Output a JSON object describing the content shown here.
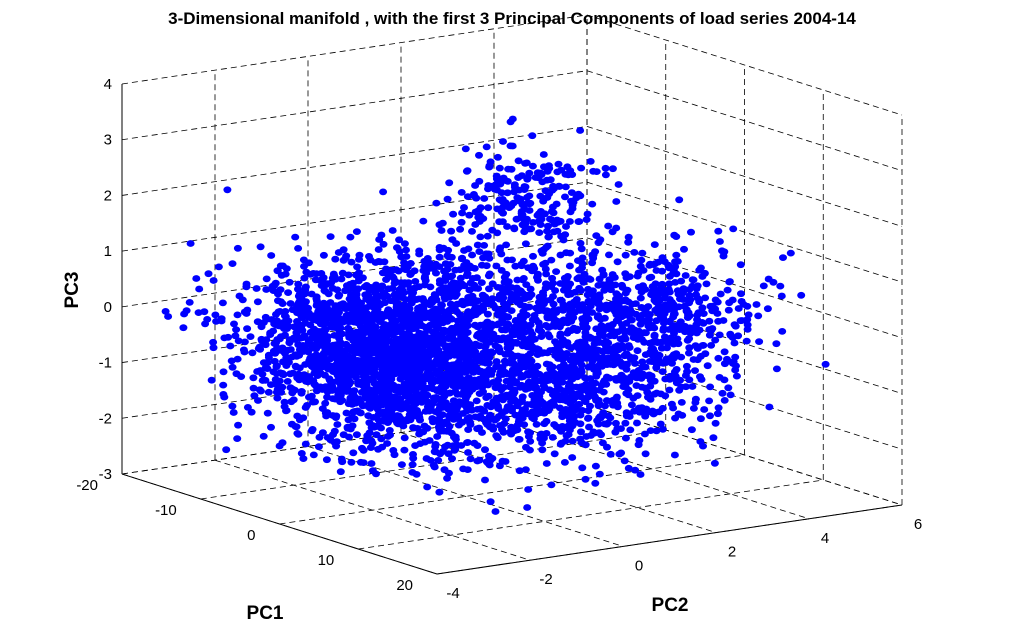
{
  "chart_data": {
    "type": "scatter",
    "title": "3-Dimensional manifold , with the first 3 Principal Components of load series 2004-14",
    "xlabel": "PC1",
    "ylabel": "PC2",
    "zlabel": "PC3",
    "xlim": [
      -20,
      20
    ],
    "ylim": [
      -4,
      6
    ],
    "zlim": [
      -3,
      4
    ],
    "x_ticks": [
      "-20",
      "-10",
      "0",
      "10",
      "20"
    ],
    "y_ticks": [
      "-4",
      "-2",
      "0",
      "2",
      "4",
      "6"
    ],
    "z_ticks": [
      "-3",
      "-2",
      "-1",
      "0",
      "1",
      "2",
      "3",
      "4"
    ],
    "grid": true,
    "point_color": "#0000ff",
    "clusters": [
      {
        "n": 2000,
        "center": [
          -2,
          -1.5,
          -0.4
        ],
        "spread": [
          7,
          0.9,
          0.7
        ]
      },
      {
        "n": 900,
        "center": [
          6,
          1.2,
          -0.9
        ],
        "spread": [
          5,
          1.4,
          0.55
        ]
      },
      {
        "n": 500,
        "center": [
          0,
          0.6,
          0.5
        ],
        "spread": [
          6,
          1.0,
          0.45
        ]
      },
      {
        "n": 220,
        "center": [
          -3,
          1.8,
          2.0
        ],
        "spread": [
          3,
          0.6,
          0.45
        ]
      },
      {
        "n": 420,
        "center": [
          3,
          3.5,
          0.1
        ],
        "spread": [
          4,
          1.0,
          0.55
        ]
      }
    ]
  }
}
